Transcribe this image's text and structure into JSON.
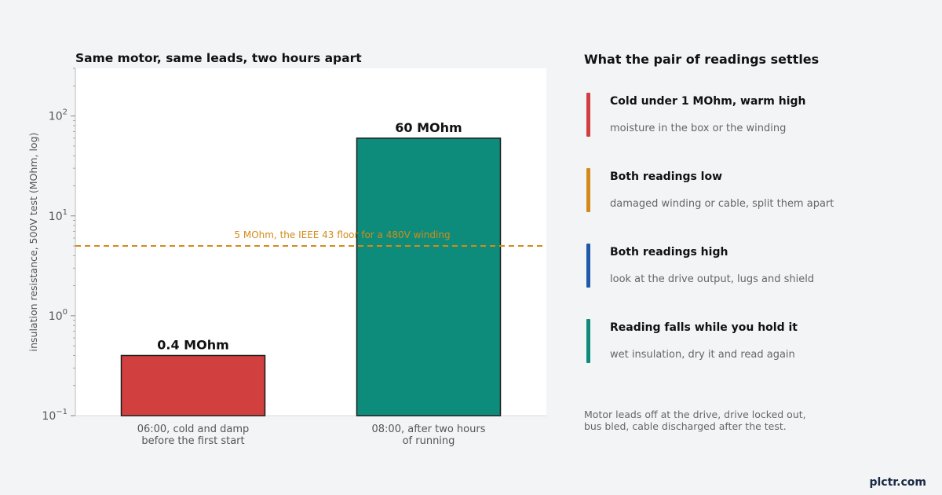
{
  "chart_data": {
    "type": "bar",
    "title": "Same motor, same leads, two hours apart",
    "xlabel": "",
    "ylabel": "insulation resistance, 500V test (MOhm, log)",
    "yscale": "log",
    "ylim": [
      0.1,
      300
    ],
    "yticks": [
      {
        "value": 0.1,
        "base": "10",
        "exp": "−1"
      },
      {
        "value": 1,
        "base": "10",
        "exp": "0"
      },
      {
        "value": 10,
        "base": "10",
        "exp": "1"
      },
      {
        "value": 100,
        "base": "10",
        "exp": "2"
      }
    ],
    "categories": [
      [
        "06:00, cold and damp",
        "before the first start"
      ],
      [
        "08:00, after two hours",
        "of running"
      ]
    ],
    "values": [
      0.4,
      60
    ],
    "data_labels": [
      "0.4 MOhm",
      "60 MOhm"
    ],
    "bar_colors": [
      "#d23f3f",
      "#0e8c7b"
    ],
    "reference_line": {
      "value": 5,
      "label": "5 MOhm, the IEEE 43 floor for a 480V winding",
      "color": "#d48a1a"
    },
    "grid": false
  },
  "panel": {
    "title": "What the pair of readings settles",
    "items": [
      {
        "heading": "Cold under 1 MOhm, warm high",
        "text": "moisture in the box or the winding",
        "color": "#d23f3f"
      },
      {
        "heading": "Both readings low",
        "text": "damaged winding or cable, split them apart",
        "color": "#d48a1a"
      },
      {
        "heading": "Both readings high",
        "text": "look at the drive output, lugs and shield",
        "color": "#1f5aa8"
      },
      {
        "heading": "Reading falls while you hold it",
        "text": "wet insulation, dry it and read again",
        "color": "#0e8c7b"
      }
    ],
    "note": [
      "Motor leads off at the drive, drive locked out,",
      "bus bled, cable discharged after the test."
    ]
  },
  "brand": "plctr.com"
}
